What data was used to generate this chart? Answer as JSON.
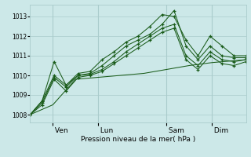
{
  "background_color": "#cce8e8",
  "grid_color": "#aacccc",
  "line_color": "#1a5c1a",
  "title": "Pression niveau de la mer( hPa )",
  "ylabel_values": [
    1008,
    1009,
    1010,
    1011,
    1012,
    1013
  ],
  "day_labels": [
    " Ven",
    " Lun",
    " Sam",
    " Dim"
  ],
  "day_ticks": [
    1,
    3,
    6,
    8
  ],
  "xlim": [
    0,
    9.5
  ],
  "ylim": [
    1007.6,
    1013.6
  ],
  "series": [
    [
      1008.0,
      1008.7,
      1010.7,
      1009.5,
      1010.1,
      1010.2,
      1010.8,
      1011.2,
      1011.7,
      1012.0,
      1012.5,
      1013.1,
      1013.0,
      1011.8,
      1011.0,
      1012.0,
      1011.5,
      1011.0,
      1011.0
    ],
    [
      1008.0,
      1008.7,
      1010.0,
      1009.5,
      1010.0,
      1010.1,
      1010.5,
      1011.0,
      1011.5,
      1011.8,
      1012.1,
      1012.6,
      1013.3,
      1011.5,
      1010.8,
      1011.5,
      1011.0,
      1010.9,
      1010.9
    ],
    [
      1008.0,
      1008.6,
      1009.9,
      1009.4,
      1010.0,
      1010.05,
      1010.3,
      1010.7,
      1011.2,
      1011.6,
      1012.0,
      1012.4,
      1012.6,
      1011.0,
      1010.5,
      1011.2,
      1010.8,
      1010.7,
      1010.8
    ],
    [
      1008.0,
      1008.5,
      1009.8,
      1009.2,
      1009.9,
      1010.0,
      1010.2,
      1010.6,
      1011.0,
      1011.4,
      1011.8,
      1012.2,
      1012.4,
      1010.8,
      1010.3,
      1011.0,
      1010.6,
      1010.5,
      1010.7
    ]
  ],
  "smooth_series_x": [
    0,
    1,
    2,
    3,
    4,
    5,
    6,
    7,
    8,
    9,
    9.5
  ],
  "smooth_series_y": [
    1008.0,
    1008.5,
    1009.8,
    1009.9,
    1010.0,
    1010.1,
    1010.3,
    1010.5,
    1010.65,
    1010.75,
    1010.8
  ],
  "n_points": 19,
  "x_start": 0,
  "x_end": 9.5
}
